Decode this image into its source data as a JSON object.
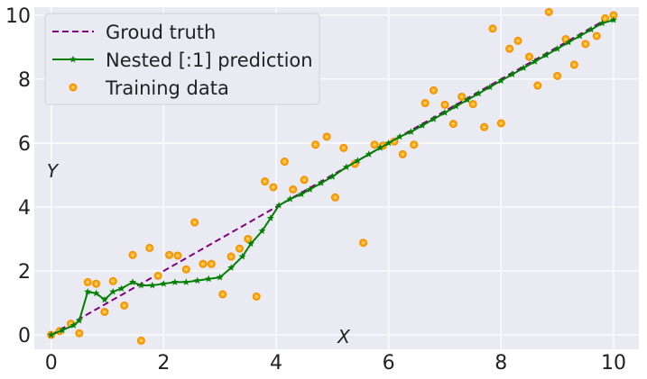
{
  "chart_data": {
    "type": "line",
    "xlabel": "X",
    "ylabel": "Y",
    "xlim": [
      -0.3,
      10.45
    ],
    "ylim": [
      -0.45,
      10.25
    ],
    "xticks": [
      0,
      2,
      4,
      6,
      8,
      10
    ],
    "yticks": [
      0,
      2,
      4,
      6,
      8,
      10
    ],
    "xtick_labels": [
      "0",
      "2",
      "4",
      "6",
      "8",
      "10"
    ],
    "ytick_labels": [
      "0",
      "2",
      "4",
      "6",
      "8",
      "10"
    ],
    "grid": true,
    "legend_position": "top-left",
    "colors": {
      "ground_truth": "#800080",
      "prediction": "#008000",
      "training": "#ffa500",
      "background": "#eaeaf2",
      "grid": "#ffffff"
    },
    "series": [
      {
        "name": "Groud truth",
        "style": "dashed",
        "x": [
          0,
          10
        ],
        "y": [
          0,
          10
        ]
      },
      {
        "name": "Nested [:1] prediction",
        "style": "solid-star",
        "x": [
          0.0,
          0.2,
          0.4,
          0.5,
          0.65,
          0.8,
          0.95,
          1.1,
          1.25,
          1.45,
          1.6,
          1.8,
          2.0,
          2.2,
          2.4,
          2.6,
          2.8,
          3.0,
          3.2,
          3.4,
          3.55,
          3.75,
          3.9,
          4.05,
          4.25,
          4.45,
          4.6,
          4.8,
          5.0,
          5.25,
          5.45,
          5.65,
          5.85,
          6.0,
          6.2,
          6.4,
          6.6,
          6.8,
          7.0,
          7.2,
          7.4,
          7.6,
          7.8,
          8.0,
          8.2,
          8.4,
          8.6,
          8.8,
          9.0,
          9.2,
          9.4,
          9.6,
          9.8,
          10.0
        ],
        "y": [
          0.0,
          0.15,
          0.3,
          0.45,
          1.35,
          1.3,
          1.1,
          1.35,
          1.45,
          1.65,
          1.55,
          1.55,
          1.6,
          1.65,
          1.65,
          1.7,
          1.75,
          1.8,
          2.1,
          2.45,
          2.85,
          3.25,
          3.65,
          4.05,
          4.25,
          4.4,
          4.55,
          4.75,
          4.95,
          5.25,
          5.45,
          5.65,
          5.85,
          6.0,
          6.2,
          6.35,
          6.55,
          6.75,
          6.95,
          7.15,
          7.35,
          7.55,
          7.75,
          7.95,
          8.15,
          8.35,
          8.55,
          8.75,
          8.95,
          9.15,
          9.35,
          9.55,
          9.75,
          9.85
        ]
      },
      {
        "name": "Training data",
        "style": "scatter",
        "x": [
          0.0,
          0.15,
          0.35,
          0.5,
          0.65,
          0.8,
          0.95,
          1.1,
          1.3,
          1.45,
          1.6,
          1.75,
          1.9,
          2.1,
          2.25,
          2.4,
          2.55,
          2.7,
          2.85,
          3.05,
          3.2,
          3.35,
          3.5,
          3.65,
          3.8,
          3.95,
          4.15,
          4.3,
          4.5,
          4.7,
          4.9,
          5.05,
          5.2,
          5.4,
          5.55,
          5.75,
          5.9,
          6.1,
          6.25,
          6.45,
          6.65,
          6.8,
          7.0,
          7.15,
          7.3,
          7.5,
          7.7,
          7.85,
          8.0,
          8.15,
          8.3,
          8.5,
          8.65,
          8.85,
          9.0,
          9.15,
          9.3,
          9.5,
          9.7,
          9.85,
          10.0
        ],
        "y": [
          0.0,
          0.12,
          0.35,
          0.05,
          1.65,
          1.6,
          0.72,
          1.68,
          0.92,
          2.5,
          -0.18,
          2.72,
          1.85,
          2.5,
          2.48,
          2.05,
          3.52,
          2.22,
          2.22,
          1.27,
          2.45,
          2.7,
          3.0,
          1.2,
          4.8,
          4.62,
          5.42,
          4.55,
          4.85,
          5.95,
          6.2,
          4.3,
          5.85,
          5.35,
          2.88,
          5.95,
          5.92,
          6.05,
          5.65,
          5.95,
          7.25,
          7.65,
          7.2,
          6.6,
          7.45,
          7.22,
          6.5,
          9.58,
          6.62,
          8.95,
          9.2,
          8.7,
          7.8,
          10.1,
          8.1,
          9.25,
          8.45,
          9.1,
          9.35,
          9.9,
          10.0
        ]
      }
    ]
  }
}
